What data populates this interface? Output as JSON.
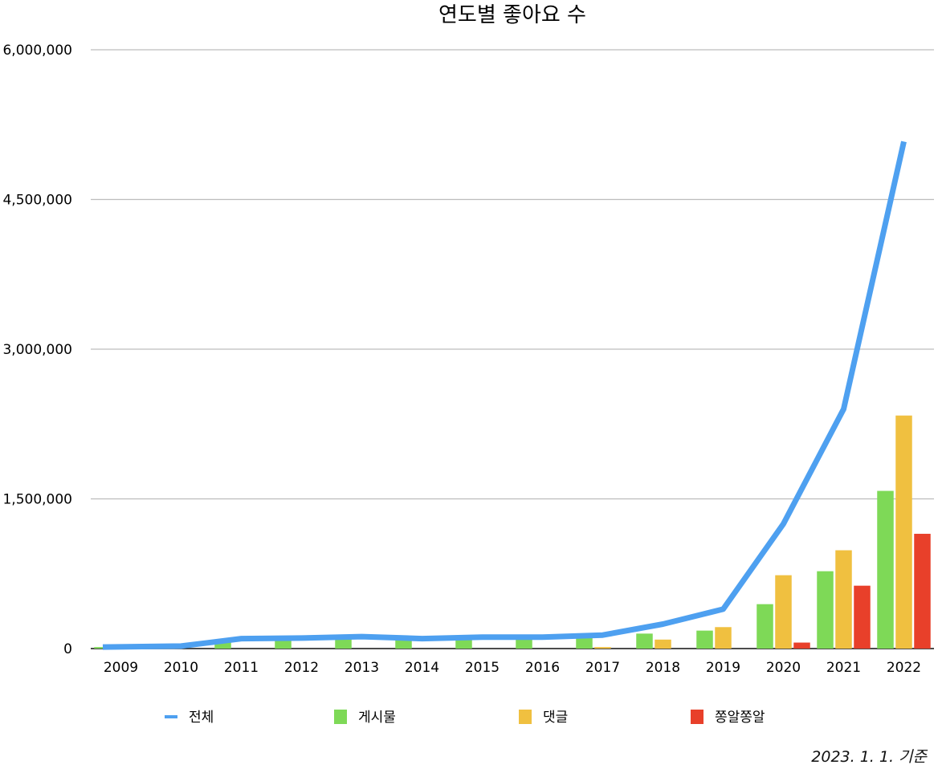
{
  "chart_data": {
    "type": "bar",
    "title": "연도별 좋아요 수",
    "categories": [
      "2009",
      "2010",
      "2011",
      "2012",
      "2013",
      "2014",
      "2015",
      "2016",
      "2017",
      "2018",
      "2019",
      "2020",
      "2021",
      "2022"
    ],
    "y_ticks": [
      "0",
      "1,500,000",
      "3,000,000",
      "4,500,000",
      "6,000,000"
    ],
    "ylim": [
      0,
      6000000
    ],
    "grid": true,
    "legend_position": "bottom",
    "series": [
      {
        "name": "전체",
        "kind": "line",
        "color": "#4ea0f0",
        "values": [
          15000,
          25000,
          100000,
          105000,
          120000,
          100000,
          115000,
          115000,
          135000,
          245000,
          395000,
          1250000,
          2400000,
          5080000
        ]
      },
      {
        "name": "게시물",
        "kind": "bar",
        "color": "#7ed957",
        "values": [
          15000,
          25000,
          90000,
          95000,
          105000,
          95000,
          105000,
          105000,
          120000,
          150000,
          180000,
          445000,
          775000,
          1580000
        ]
      },
      {
        "name": "댓글",
        "kind": "bar",
        "color": "#f0c040",
        "values": [
          0,
          0,
          0,
          0,
          0,
          0,
          0,
          0,
          15000,
          90000,
          215000,
          735000,
          985000,
          2335000
        ]
      },
      {
        "name": "쫑알쫑알",
        "kind": "bar",
        "color": "#e8402a",
        "values": [
          0,
          0,
          0,
          0,
          0,
          0,
          0,
          0,
          0,
          0,
          0,
          60000,
          630000,
          1150000
        ]
      }
    ]
  },
  "footnote": "2023. 1. 1. 기준"
}
